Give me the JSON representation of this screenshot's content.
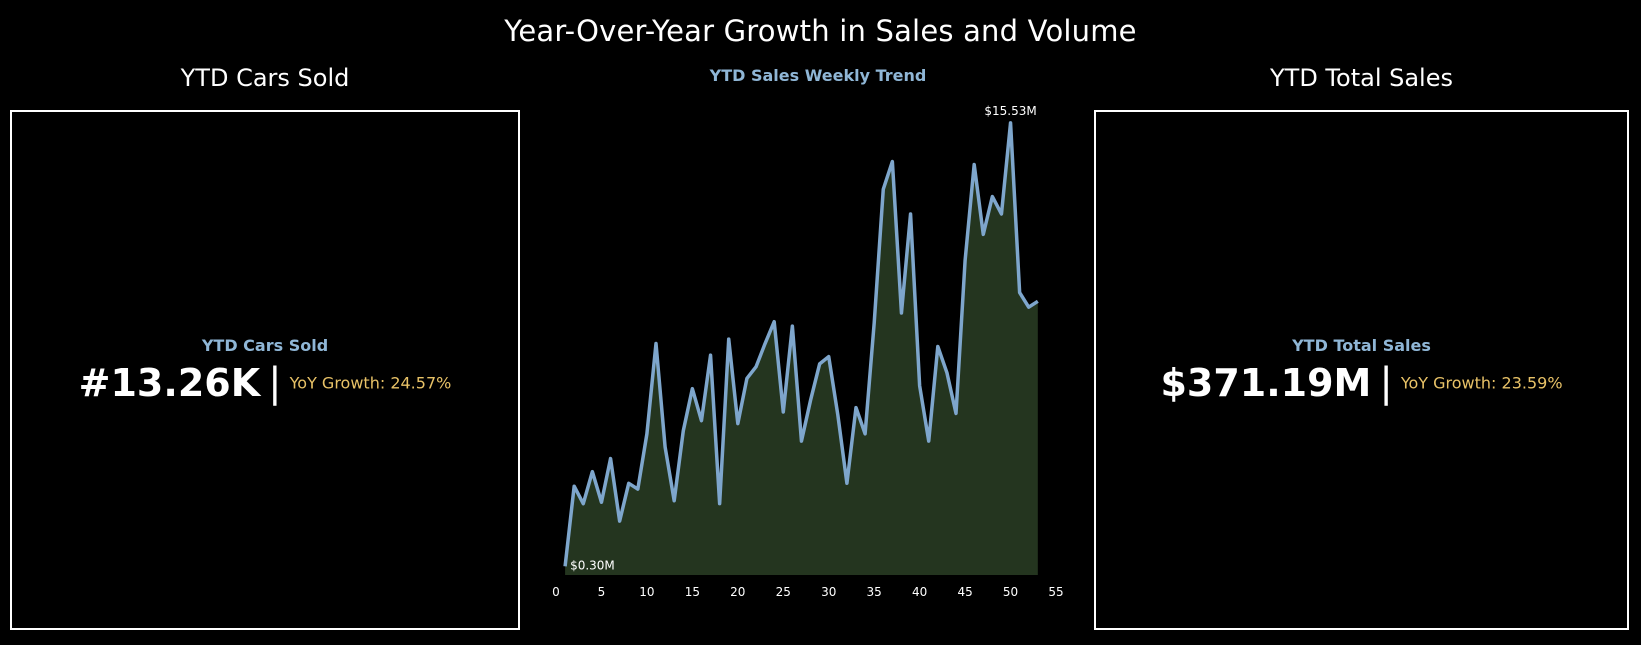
{
  "dashboard": {
    "title": "Year-Over-Year Growth in Sales and Volume"
  },
  "left_panel": {
    "section_title": "YTD Cars Sold",
    "kpi_label": "YTD Cars Sold",
    "kpi_value": "#13.26K",
    "separator": "|",
    "yoy_growth": "YoY Growth: 24.57%"
  },
  "right_panel": {
    "section_title": "YTD Total Sales",
    "kpi_label": "YTD Total Sales",
    "kpi_value": "$371.19M",
    "separator": "|",
    "yoy_growth": "YoY Growth: 23.59%"
  },
  "colors": {
    "background": "#000000",
    "line": "#7ea6cc",
    "area_fill": "#24351f",
    "label_blue": "#8fb6d6",
    "growth_gold": "#e8c267",
    "text": "#ffffff"
  },
  "chart_data": {
    "type": "area",
    "title": "YTD Sales Weekly Trend",
    "xlabel": "",
    "ylabel": "",
    "xlim": [
      0,
      55
    ],
    "ylim": [
      0,
      15.8
    ],
    "x_ticks": [
      "0",
      "5",
      "10",
      "15",
      "20",
      "25",
      "30",
      "35",
      "40",
      "45",
      "50",
      "55"
    ],
    "grid": false,
    "annotations": [
      {
        "label": "$15.53M",
        "x": 50,
        "y": 15.53
      },
      {
        "label": "$0.30M",
        "x": 1,
        "y": 0.3
      }
    ],
    "series": [
      {
        "x": [
          1,
          2,
          3,
          4,
          5,
          6,
          7,
          8,
          9,
          10,
          11,
          12,
          13,
          14,
          15,
          16,
          17,
          18,
          19,
          20,
          21,
          22,
          23,
          24,
          25,
          26,
          27,
          28,
          29,
          30,
          31,
          32,
          33,
          34,
          35,
          36,
          37,
          38,
          39,
          40,
          41,
          42,
          43,
          44,
          45,
          46,
          47,
          48,
          49,
          50,
          51,
          52,
          53
        ],
        "values": [
          0.3,
          3.05,
          2.45,
          3.55,
          2.5,
          4.0,
          1.85,
          3.15,
          2.95,
          4.85,
          7.95,
          4.4,
          2.55,
          4.95,
          6.4,
          5.3,
          7.55,
          2.45,
          8.1,
          5.2,
          6.75,
          7.15,
          7.95,
          8.7,
          5.6,
          8.55,
          4.6,
          6.0,
          7.25,
          7.5,
          5.5,
          3.15,
          5.75,
          4.85,
          8.65,
          13.25,
          14.2,
          9.0,
          12.4,
          6.5,
          4.6,
          7.85,
          6.95,
          5.55,
          10.8,
          14.1,
          11.7,
          13.0,
          12.4,
          15.53,
          9.7,
          9.2,
          9.4
        ]
      }
    ]
  }
}
